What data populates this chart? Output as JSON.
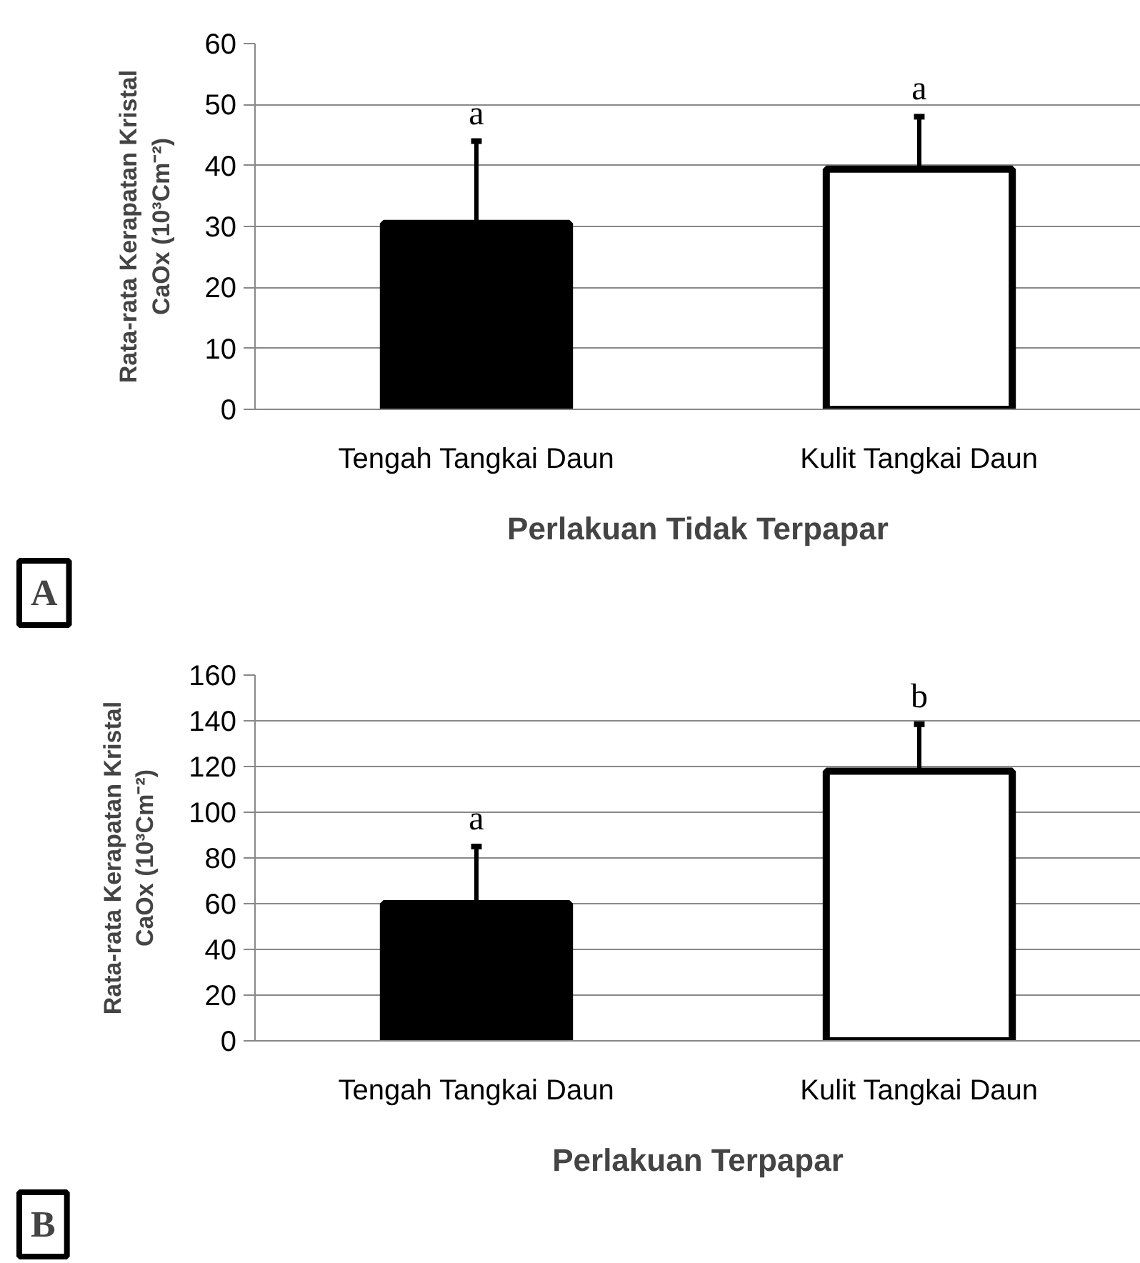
{
  "chart_data": [
    {
      "type": "bar",
      "categories": [
        "Tengah Tangkai Daun",
        "Kulit Tangkai Daun"
      ],
      "values": [
        30.5,
        39.4
      ],
      "colors": [
        "#000000",
        "#ffffff"
      ],
      "errors": [
        [
          30.5,
          44
        ],
        [
          39.4,
          48
        ]
      ],
      "xlabel": "Perlakuan Tidak Terpapar",
      "ylabel": "Rata-rata Kerapatan Kristal\nCaOx (10³Cm⁻²)",
      "ylim": [
        0,
        60
      ],
      "yticks": [
        0,
        10,
        20,
        30,
        40,
        50,
        60
      ],
      "grid": "y",
      "annotations": [
        {
          "text": "a",
          "x": "Tengah Tangkai Daun",
          "y": 44
        },
        {
          "text": "a",
          "x": "Kulit Tangkai Daun",
          "y": 48
        },
        "A"
      ]
    },
    {
      "type": "bar",
      "categories": [
        "Tengah Tangkai Daun",
        "Kulit Tangkai Daun"
      ],
      "values": [
        60,
        118
      ],
      "colors": [
        "#000000",
        "#ffffff"
      ],
      "errors": [
        [
          60,
          85
        ],
        [
          118,
          138.5
        ]
      ],
      "xlabel": "Perlakuan Terpapar",
      "ylabel": "Rata-rata Kerapatan Kristal\nCaOx (10³Cm⁻²)",
      "ylim": [
        0,
        160
      ],
      "yticks": [
        0,
        20,
        40,
        60,
        80,
        100,
        120,
        140,
        160
      ],
      "grid": "y",
      "annotations": [
        {
          "text": "a",
          "x": "Tengah Tangkai Daun",
          "y": 85
        },
        {
          "text": "b",
          "x": "Kulit Tangkai Daun",
          "y": 138.5
        },
        "B"
      ]
    }
  ]
}
